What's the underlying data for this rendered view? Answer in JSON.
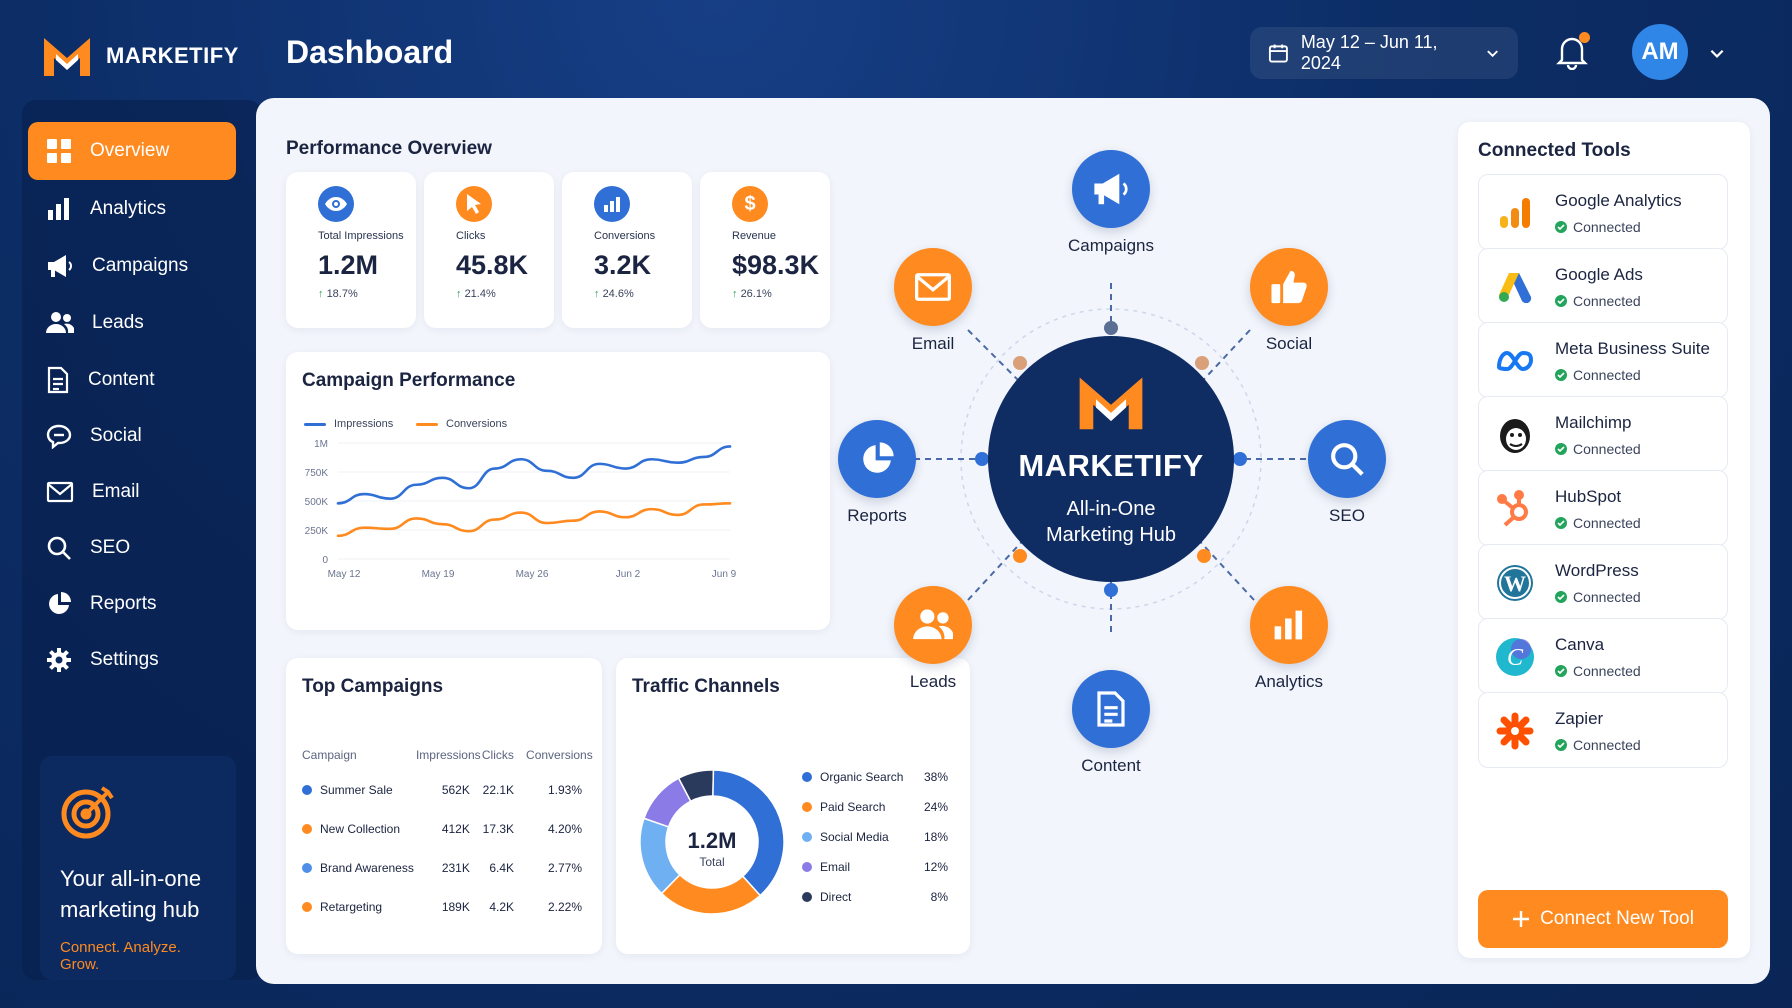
{
  "brand": {
    "name": "MARKETIFY",
    "accent": "#ff8a1f",
    "navy": "#0f2c63"
  },
  "header": {
    "title": "Dashboard",
    "date_range": "May 12 – Jun 11, 2024",
    "avatar_initials": "AM"
  },
  "sidebar": {
    "items": [
      {
        "label": "Overview",
        "icon": "grid-icon",
        "active": true
      },
      {
        "label": "Analytics",
        "icon": "bar-chart-icon"
      },
      {
        "label": "Campaigns",
        "icon": "megaphone-icon"
      },
      {
        "label": "Leads",
        "icon": "users-icon"
      },
      {
        "label": "Content",
        "icon": "document-icon"
      },
      {
        "label": "Social",
        "icon": "chat-icon"
      },
      {
        "label": "Email",
        "icon": "mail-icon"
      },
      {
        "label": "SEO",
        "icon": "search-icon"
      },
      {
        "label": "Reports",
        "icon": "pie-chart-icon"
      },
      {
        "label": "Settings",
        "icon": "gear-icon"
      }
    ],
    "promo": {
      "title": "Your all-in-one marketing hub",
      "subtitle": "Connect. Analyze. Grow."
    }
  },
  "performance": {
    "title": "Performance Overview",
    "kpis": [
      {
        "label": "Total Impressions",
        "value": "1.2M",
        "delta": "18.7%",
        "icon": "eye-icon",
        "color": "#2f6fd6"
      },
      {
        "label": "Clicks",
        "value": "45.8K",
        "delta": "21.4%",
        "icon": "cursor-icon",
        "color": "#ff8a1f"
      },
      {
        "label": "Conversions",
        "value": "3.2K",
        "delta": "24.6%",
        "icon": "bar-chart-icon",
        "color": "#2f6fd6"
      },
      {
        "label": "Revenue",
        "value": "$98.3K",
        "delta": "26.1%",
        "icon": "dollar-icon",
        "color": "#ff8a1f"
      }
    ]
  },
  "campaign_performance": {
    "title": "Campaign Performance",
    "legend": [
      "Impressions",
      "Conversions"
    ],
    "y_ticks": [
      "1M",
      "750K",
      "500K",
      "250K",
      "0"
    ],
    "x_ticks": [
      "May 12",
      "May 19",
      "May 26",
      "Jun 2",
      "Jun 9"
    ]
  },
  "chart_data": {
    "type": "line",
    "title": "Campaign Performance",
    "x": [
      "May 12",
      "May 14",
      "May 16",
      "May 18",
      "May 20",
      "May 22",
      "May 24",
      "May 26",
      "May 28",
      "May 30",
      "Jun 1",
      "Jun 3",
      "Jun 5",
      "Jun 7",
      "Jun 9",
      "Jun 11"
    ],
    "ylim": [
      0,
      1000000
    ],
    "series": [
      {
        "name": "Impressions",
        "color": "#2f6fd6",
        "values": [
          480000,
          560000,
          520000,
          640000,
          700000,
          610000,
          780000,
          860000,
          760000,
          700000,
          820000,
          780000,
          860000,
          830000,
          880000,
          970000
        ]
      },
      {
        "name": "Conversions",
        "color": "#ff8a1f",
        "values": [
          200000,
          270000,
          260000,
          350000,
          300000,
          240000,
          340000,
          400000,
          310000,
          330000,
          410000,
          360000,
          430000,
          380000,
          470000,
          480000
        ]
      }
    ]
  },
  "top_campaigns": {
    "title": "Top Campaigns",
    "columns": [
      "Campaign",
      "Impressions",
      "Clicks",
      "Conversions"
    ],
    "rows": [
      {
        "name": "Summer Sale",
        "impressions": "562K",
        "clicks": "22.1K",
        "conversions": "1.93%",
        "color": "#2f6fd6"
      },
      {
        "name": "New Collection",
        "impressions": "412K",
        "clicks": "17.3K",
        "conversions": "4.20%",
        "color": "#ff8a1f"
      },
      {
        "name": "Brand Awareness",
        "impressions": "231K",
        "clicks": "6.4K",
        "conversions": "2.77%",
        "color": "#4f8fe8"
      },
      {
        "name": "Retargeting",
        "impressions": "189K",
        "clicks": "4.2K",
        "conversions": "2.22%",
        "color": "#ff8a1f"
      }
    ]
  },
  "traffic_channels": {
    "title": "Traffic Channels",
    "total_value": "1.2M",
    "total_label": "Total",
    "channels": [
      {
        "name": "Organic Search",
        "pct": "38%",
        "share": 38,
        "color": "#2f6fd6"
      },
      {
        "name": "Paid Search",
        "pct": "24%",
        "share": 24,
        "color": "#ff8a1f"
      },
      {
        "name": "Social Media",
        "pct": "18%",
        "share": 18,
        "color": "#6fb0f2"
      },
      {
        "name": "Email",
        "pct": "12%",
        "share": 12,
        "color": "#8a7be6"
      },
      {
        "name": "Direct",
        "pct": "8%",
        "share": 8,
        "color": "#2a3a5c"
      }
    ]
  },
  "hub": {
    "center_title": "MARKETIFY",
    "center_subtitle_1": "All-in-One",
    "center_subtitle_2": "Marketing Hub",
    "nodes": [
      {
        "label": "Campaigns",
        "icon": "megaphone-icon",
        "color": "#2f6fd6"
      },
      {
        "label": "Social",
        "icon": "thumbs-up-icon",
        "color": "#ff8a1f"
      },
      {
        "label": "SEO",
        "icon": "search-icon",
        "color": "#2f6fd6"
      },
      {
        "label": "Analytics",
        "icon": "bar-chart-icon",
        "color": "#ff8a1f"
      },
      {
        "label": "Content",
        "icon": "document-icon",
        "color": "#2f6fd6"
      },
      {
        "label": "Leads",
        "icon": "users-icon",
        "color": "#ff8a1f"
      },
      {
        "label": "Reports",
        "icon": "pie-chart-icon",
        "color": "#2f6fd6"
      },
      {
        "label": "Email",
        "icon": "mail-icon",
        "color": "#ff8a1f"
      }
    ]
  },
  "connected_tools": {
    "title": "Connected Tools",
    "status_label": "Connected",
    "tools": [
      {
        "name": "Google Analytics",
        "icon": "google-analytics-icon"
      },
      {
        "name": "Google Ads",
        "icon": "google-ads-icon"
      },
      {
        "name": "Meta Business Suite",
        "icon": "meta-icon"
      },
      {
        "name": "Mailchimp",
        "icon": "mailchimp-icon"
      },
      {
        "name": "HubSpot",
        "icon": "hubspot-icon"
      },
      {
        "name": "WordPress",
        "icon": "wordpress-icon"
      },
      {
        "name": "Canva",
        "icon": "canva-icon"
      },
      {
        "name": "Zapier",
        "icon": "zapier-icon"
      }
    ],
    "button_label": "Connect New Tool"
  }
}
